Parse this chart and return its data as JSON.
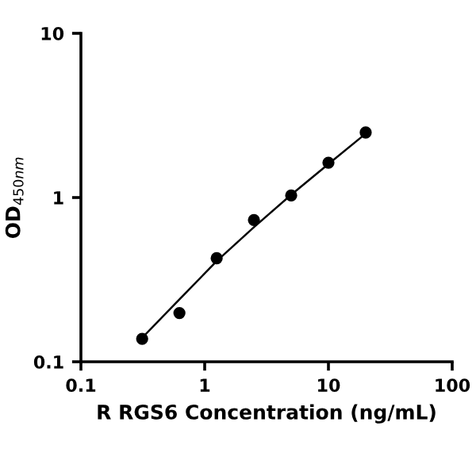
{
  "chart_data": {
    "type": "scatter",
    "xlabel": "R RGS6 Concentration (ng/mL)",
    "ylabel": "OD$_{450nm}$",
    "log": "xy",
    "x": [
      0.3125,
      0.625,
      1.25,
      2.5,
      5,
      10,
      20
    ],
    "series": [
      {
        "color": "#000000",
        "marker": "circle",
        "values": [
          0.138,
          0.198,
          0.427,
          0.73,
          1.03,
          1.63,
          2.49
        ]
      },
      {
        "type": "line",
        "color": "#000000",
        "marker": "none",
        "x": [
          0.3125,
          0.625,
          1.25,
          2.5,
          5,
          10,
          20
        ],
        "values": [
          0.14,
          0.24,
          0.41,
          0.66,
          1.04,
          1.6,
          2.45
        ]
      }
    ],
    "xlim": [
      0.1,
      100
    ],
    "ylim": [
      0.1,
      10
    ],
    "xticks": [
      0.1,
      1,
      10,
      100
    ],
    "yticks": [
      0.1,
      1,
      10
    ],
    "grid": false,
    "legend": false
  }
}
